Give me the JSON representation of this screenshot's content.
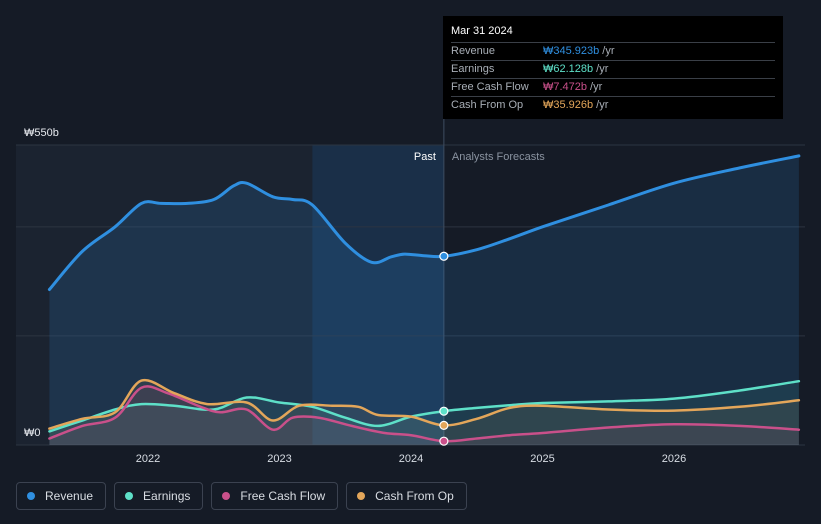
{
  "chart_data": {
    "type": "line",
    "y_unit_labels": [
      "₩550b",
      "₩0"
    ],
    "ylim": [
      0,
      550
    ],
    "x_ticks": [
      "2022",
      "2023",
      "2024",
      "2025",
      "2026"
    ],
    "region_labels": {
      "past": "Past",
      "forecast": "Analysts Forecasts"
    },
    "series": [
      {
        "name": "Revenue",
        "color": "#2f8fe0",
        "points": [
          [
            2021.25,
            285
          ],
          [
            2021.5,
            355
          ],
          [
            2021.75,
            400
          ],
          [
            2021.95,
            443
          ],
          [
            2022.1,
            443
          ],
          [
            2022.3,
            443
          ],
          [
            2022.5,
            450
          ],
          [
            2022.65,
            475
          ],
          [
            2022.75,
            480
          ],
          [
            2022.95,
            455
          ],
          [
            2023.1,
            450
          ],
          [
            2023.25,
            440
          ],
          [
            2023.5,
            370
          ],
          [
            2023.7,
            335
          ],
          [
            2023.85,
            345
          ],
          [
            2023.95,
            350
          ],
          [
            2024.1,
            347
          ],
          [
            2024.25,
            346
          ],
          [
            2024.5,
            358
          ],
          [
            2024.75,
            378
          ],
          [
            2025.0,
            400
          ],
          [
            2025.5,
            440
          ],
          [
            2026.0,
            480
          ],
          [
            2026.5,
            508
          ],
          [
            2026.95,
            530
          ]
        ]
      },
      {
        "name": "Earnings",
        "color": "#5ee0c8",
        "points": [
          [
            2021.25,
            25
          ],
          [
            2021.5,
            45
          ],
          [
            2021.75,
            65
          ],
          [
            2021.95,
            75
          ],
          [
            2022.2,
            72
          ],
          [
            2022.5,
            65
          ],
          [
            2022.75,
            87
          ],
          [
            2023.0,
            78
          ],
          [
            2023.25,
            70
          ],
          [
            2023.5,
            50
          ],
          [
            2023.75,
            35
          ],
          [
            2024.0,
            52
          ],
          [
            2024.25,
            62
          ],
          [
            2024.5,
            68
          ],
          [
            2024.75,
            73
          ],
          [
            2025.0,
            77
          ],
          [
            2025.5,
            80
          ],
          [
            2026.0,
            85
          ],
          [
            2026.5,
            100
          ],
          [
            2026.95,
            117
          ]
        ]
      },
      {
        "name": "Free Cash Flow",
        "color": "#c9508a",
        "points": [
          [
            2021.25,
            12
          ],
          [
            2021.5,
            35
          ],
          [
            2021.75,
            50
          ],
          [
            2021.95,
            105
          ],
          [
            2022.15,
            95
          ],
          [
            2022.4,
            70
          ],
          [
            2022.55,
            60
          ],
          [
            2022.75,
            65
          ],
          [
            2022.95,
            28
          ],
          [
            2023.1,
            50
          ],
          [
            2023.3,
            50
          ],
          [
            2023.55,
            35
          ],
          [
            2023.8,
            22
          ],
          [
            2024.0,
            18
          ],
          [
            2024.25,
            7
          ],
          [
            2024.5,
            12
          ],
          [
            2024.75,
            18
          ],
          [
            2025.0,
            22
          ],
          [
            2025.5,
            32
          ],
          [
            2026.0,
            38
          ],
          [
            2026.5,
            35
          ],
          [
            2026.95,
            28
          ]
        ]
      },
      {
        "name": "Cash From Op",
        "color": "#e3a65a",
        "points": [
          [
            2021.25,
            30
          ],
          [
            2021.5,
            48
          ],
          [
            2021.75,
            60
          ],
          [
            2021.95,
            118
          ],
          [
            2022.2,
            95
          ],
          [
            2022.45,
            75
          ],
          [
            2022.75,
            78
          ],
          [
            2022.95,
            45
          ],
          [
            2023.15,
            72
          ],
          [
            2023.4,
            72
          ],
          [
            2023.6,
            70
          ],
          [
            2023.75,
            55
          ],
          [
            2024.0,
            52
          ],
          [
            2024.25,
            36
          ],
          [
            2024.5,
            48
          ],
          [
            2024.75,
            68
          ],
          [
            2025.0,
            72
          ],
          [
            2025.5,
            65
          ],
          [
            2026.0,
            63
          ],
          [
            2026.5,
            70
          ],
          [
            2026.95,
            82
          ]
        ]
      }
    ]
  },
  "tooltip": {
    "date": "Mar 31 2024",
    "rows": [
      {
        "name": "Revenue",
        "value": "₩345.923b",
        "unit": "/yr",
        "color": "#2f8fe0"
      },
      {
        "name": "Earnings",
        "value": "₩62.128b",
        "unit": "/yr",
        "color": "#5ee0c8"
      },
      {
        "name": "Free Cash Flow",
        "value": "₩7.472b",
        "unit": "/yr",
        "color": "#c9508a"
      },
      {
        "name": "Cash From Op",
        "value": "₩35.926b",
        "unit": "/yr",
        "color": "#e3a65a"
      }
    ]
  },
  "legend": [
    {
      "label": "Revenue",
      "color": "#2f8fe0"
    },
    {
      "label": "Earnings",
      "color": "#5ee0c8"
    },
    {
      "label": "Free Cash Flow",
      "color": "#c9508a"
    },
    {
      "label": "Cash From Op",
      "color": "#e3a65a"
    }
  ],
  "cursor_year": 2024.25
}
